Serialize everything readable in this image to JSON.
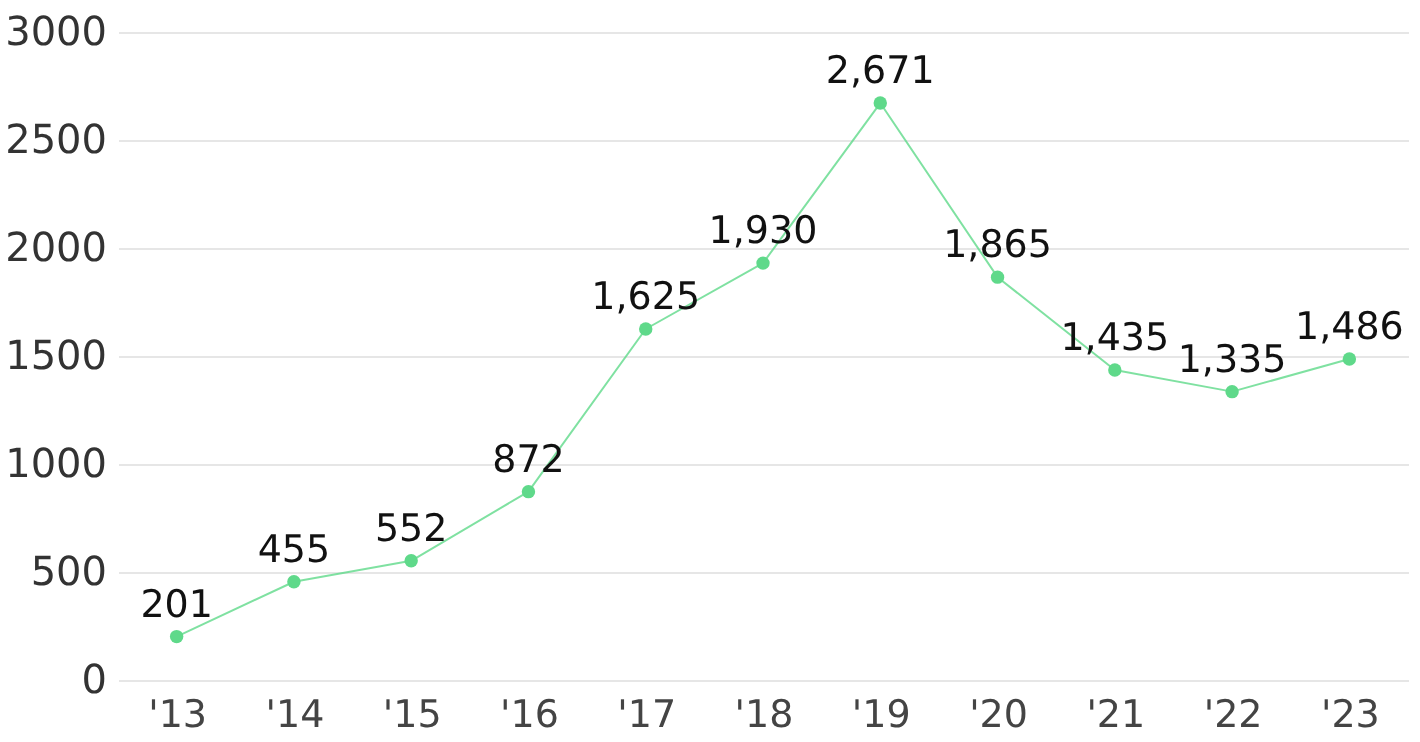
{
  "chart_data": {
    "type": "line",
    "categories": [
      "'13",
      "'14",
      "'15",
      "'16",
      "'17",
      "'18",
      "'19",
      "'20",
      "'21",
      "'22",
      "'23"
    ],
    "series": [
      {
        "color": "#5fd98a",
        "values": [
          201,
          455,
          552,
          872,
          1625,
          1930,
          2671,
          1865,
          1435,
          1335,
          1486
        ],
        "value_labels": [
          "201",
          "455",
          "552",
          "872",
          "1,625",
          "1,930",
          "2,671",
          "1,865",
          "1,435",
          "1,335",
          "1,486"
        ]
      }
    ],
    "ylim": [
      0,
      3000
    ],
    "yticks": [
      0,
      500,
      1000,
      1500,
      2000,
      2500,
      3000
    ],
    "grid": "y",
    "marker": "circle",
    "line_style": "solid"
  }
}
